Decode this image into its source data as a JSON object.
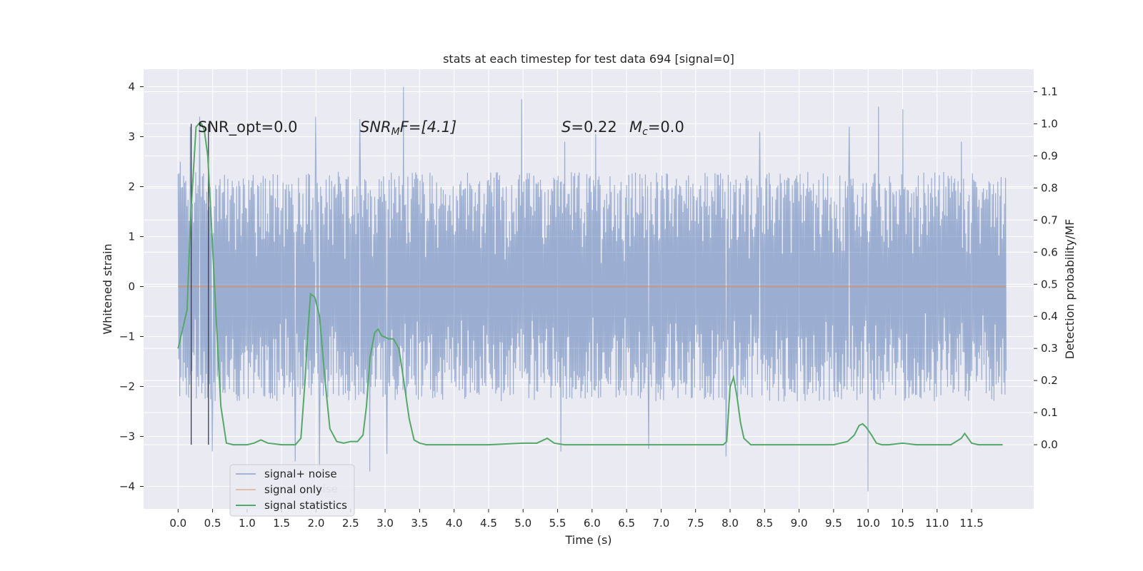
{
  "chart_data": {
    "type": "line",
    "title": "stats at each timestep for test data 694 [signal=0]",
    "xlabel": "Time (s)",
    "ylabel_left": "Whitened strain",
    "ylabel_right": "Detection probability/MF",
    "xlim": [
      -0.5,
      12.4
    ],
    "ylim_left": [
      -4.45,
      4.35
    ],
    "ylim_right": [
      -0.2,
      1.17
    ],
    "x_ticks": [
      "0.0",
      "0.5",
      "1.0",
      "1.5",
      "2.0",
      "2.5",
      "3.0",
      "3.5",
      "4.0",
      "4.5",
      "5.0",
      "5.5",
      "6.0",
      "6.5",
      "7.0",
      "7.5",
      "8.0",
      "8.5",
      "9.0",
      "9.5",
      "10.0",
      "10.5",
      "11.0",
      "11.5"
    ],
    "y_ticks_left": [
      "−4",
      "−3",
      "−2",
      "−1",
      "0",
      "1",
      "2",
      "3",
      "4"
    ],
    "y_ticks_right": [
      "0.0",
      "0.1",
      "0.2",
      "0.3",
      "0.4",
      "0.5",
      "0.6",
      "0.7",
      "0.8",
      "0.9",
      "1.0",
      "1.1"
    ],
    "grid": true,
    "legend_position": "lower-left",
    "annotations": {
      "snr_opt": "SNR_opt=0.0",
      "snr_mf_base": "SNR",
      "snr_mf_sub": "M",
      "snr_mf_rest": "F=[4.1]",
      "s_var": "S",
      "s_rest": "=0.22",
      "mc_var": "M",
      "mc_sub": "c",
      "mc_rest": "=0.0",
      "obscured_legend_text": "noise"
    },
    "colors": {
      "axes_bg": "#eaeaf2",
      "grid": "#ffffff",
      "noise": "#4c72b0",
      "signal": "#dd8452",
      "stats": "#55a868",
      "vlines": "#3b3b4f"
    },
    "vertical_lines_x": [
      0.19,
      0.44
    ],
    "series": [
      {
        "name": "signal+ noise",
        "axis": "left",
        "time_range": [
          0.0,
          12.0
        ],
        "typical_envelope": [
          -2.3,
          2.3
        ],
        "peaks_high": [
          {
            "x": 0.03,
            "y": 2.5
          },
          {
            "x": 0.18,
            "y": 3.2
          },
          {
            "x": 0.31,
            "y": 3.4
          },
          {
            "x": 1.99,
            "y": 3.4
          },
          {
            "x": 2.63,
            "y": 3.35
          },
          {
            "x": 2.78,
            "y": 3.1
          },
          {
            "x": 3.27,
            "y": 4.0
          },
          {
            "x": 4.98,
            "y": 3.75
          },
          {
            "x": 5.6,
            "y": 2.9
          },
          {
            "x": 6.05,
            "y": 3.05
          },
          {
            "x": 8.43,
            "y": 3.1
          },
          {
            "x": 9.73,
            "y": 3.2
          },
          {
            "x": 10.15,
            "y": 3.6
          },
          {
            "x": 10.5,
            "y": 3.55
          },
          {
            "x": 11.35,
            "y": 2.9
          }
        ],
        "peaks_low": [
          {
            "x": 0.5,
            "y": -3.3
          },
          {
            "x": 1.7,
            "y": -3.5
          },
          {
            "x": 2.05,
            "y": -3.6
          },
          {
            "x": 2.78,
            "y": -3.7
          },
          {
            "x": 3.03,
            "y": -3.35
          },
          {
            "x": 5.55,
            "y": -3.3
          },
          {
            "x": 6.82,
            "y": -3.25
          },
          {
            "x": 7.94,
            "y": -3.4
          },
          {
            "x": 10.0,
            "y": -4.1
          }
        ]
      },
      {
        "name": "signal only",
        "axis": "left",
        "x": [
          0.0,
          12.0
        ],
        "y": [
          0.0,
          0.0
        ]
      },
      {
        "name": "signal statistics",
        "axis": "right",
        "x": [
          0.0,
          0.13,
          0.18,
          0.26,
          0.3,
          0.34,
          0.38,
          0.43,
          0.48,
          0.55,
          0.62,
          0.7,
          0.8,
          1.0,
          1.1,
          1.2,
          1.3,
          1.5,
          1.7,
          1.78,
          1.84,
          1.88,
          1.92,
          1.98,
          2.05,
          2.13,
          2.2,
          2.3,
          2.4,
          2.5,
          2.6,
          2.68,
          2.73,
          2.78,
          2.85,
          2.9,
          2.95,
          3.05,
          3.12,
          3.2,
          3.27,
          3.35,
          3.42,
          3.5,
          3.6,
          3.8,
          4.0,
          4.5,
          5.0,
          5.2,
          5.3,
          5.35,
          5.45,
          5.6,
          5.8,
          6.0,
          6.5,
          7.0,
          7.2,
          7.5,
          7.9,
          7.95,
          8.0,
          8.05,
          8.1,
          8.15,
          8.2,
          8.3,
          8.5,
          9.0,
          9.5,
          9.7,
          9.8,
          9.87,
          9.92,
          9.97,
          10.05,
          10.12,
          10.2,
          10.3,
          10.5,
          10.7,
          10.9,
          11.2,
          11.35,
          11.4,
          11.5,
          11.6,
          11.8,
          11.95
        ],
        "y": [
          0.3,
          0.42,
          0.7,
          0.99,
          1.0,
          1.0,
          0.98,
          0.9,
          0.7,
          0.4,
          0.12,
          0.005,
          0.0,
          0.0,
          0.005,
          0.015,
          0.005,
          0.0,
          0.0,
          0.02,
          0.2,
          0.35,
          0.47,
          0.46,
          0.4,
          0.2,
          0.05,
          0.01,
          0.005,
          0.01,
          0.01,
          0.03,
          0.12,
          0.27,
          0.35,
          0.36,
          0.34,
          0.33,
          0.33,
          0.3,
          0.2,
          0.08,
          0.015,
          0.005,
          0.0,
          0.0,
          0.0,
          0.0,
          0.005,
          0.005,
          0.015,
          0.02,
          0.005,
          0.0,
          0.0,
          0.0,
          0.0,
          0.0,
          0.0,
          0.0,
          0.0,
          0.01,
          0.18,
          0.21,
          0.15,
          0.07,
          0.02,
          0.0,
          0.0,
          0.0,
          0.0,
          0.01,
          0.03,
          0.06,
          0.065,
          0.055,
          0.03,
          0.005,
          0.0,
          0.0,
          0.005,
          0.0,
          0.0,
          0.0,
          0.02,
          0.035,
          0.005,
          0.0,
          0.0,
          0.0
        ]
      }
    ]
  }
}
